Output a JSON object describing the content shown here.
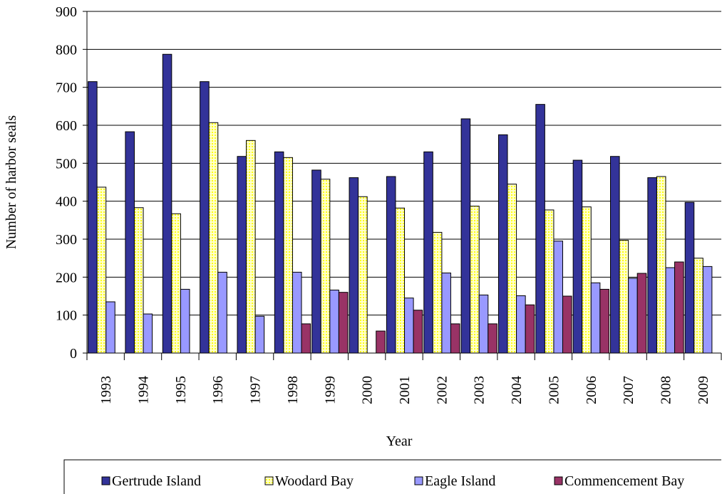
{
  "chart_data": {
    "type": "bar",
    "y_label": "Number of harbor seals",
    "x_label": "Year",
    "categories": [
      "1993",
      "1994",
      "1995",
      "1996",
      "1997",
      "1998",
      "1999",
      "2000",
      "2001",
      "2002",
      "2003",
      "2004",
      "2005",
      "2006",
      "2007",
      "2008",
      "2009"
    ],
    "series": [
      {
        "name": "Gertrude Island",
        "color": "#333399",
        "values": [
          715,
          583,
          787,
          715,
          518,
          530,
          482,
          462,
          465,
          530,
          617,
          575,
          655,
          508,
          518,
          462,
          397
        ]
      },
      {
        "name": "Woodard Bay",
        "color": "#ffff99",
        "values": [
          437,
          383,
          367,
          607,
          560,
          515,
          458,
          412,
          382,
          318,
          387,
          445,
          377,
          385,
          297,
          465,
          250
        ]
      },
      {
        "name": "Eagle Island",
        "color": "#9999ff",
        "values": [
          135,
          103,
          168,
          213,
          97,
          213,
          166,
          null,
          145,
          211,
          153,
          151,
          295,
          185,
          197,
          225,
          228
        ]
      },
      {
        "name": "Commencement Bay",
        "color": "#993366",
        "values": [
          null,
          null,
          null,
          null,
          null,
          77,
          160,
          58,
          113,
          77,
          77,
          127,
          150,
          168,
          210,
          240,
          null
        ]
      }
    ],
    "ylim": [
      0,
      900
    ],
    "yticks": [
      0,
      100,
      200,
      300,
      400,
      500,
      600,
      700,
      800,
      900
    ],
    "grid": true
  }
}
